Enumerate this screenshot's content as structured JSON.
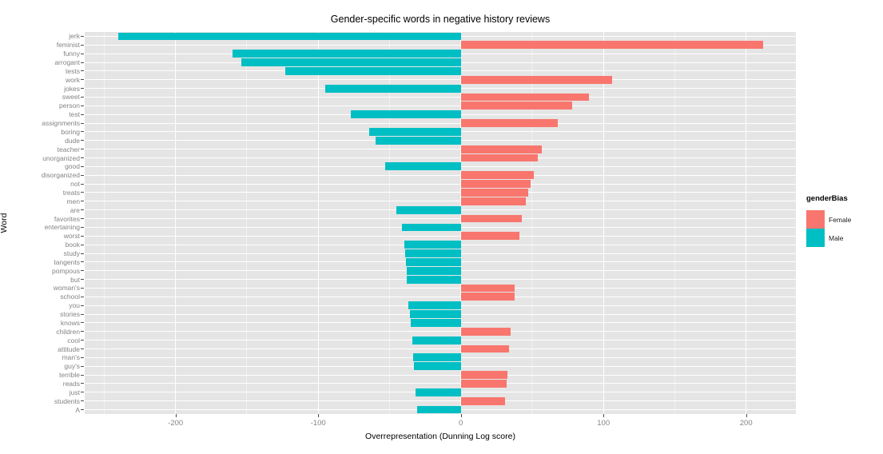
{
  "chart_data": {
    "type": "bar",
    "orientation": "horizontal",
    "title": "Gender-specific words in negative history reviews",
    "xlabel": "Overrepresentation (Dunning Log score)",
    "ylabel": "Word",
    "xlim": [
      -263.7,
      234.9
    ],
    "x_ticks": [
      -200,
      -100,
      0,
      100,
      200
    ],
    "x_minor_ticks": [
      -250,
      -150,
      -50,
      50,
      150
    ],
    "grid": true,
    "panel_color": "#e5e5e5",
    "legend": {
      "title": "genderBias",
      "position": "right",
      "entries": [
        {
          "label": "Female",
          "color": "#F8766D"
        },
        {
          "label": "Male",
          "color": "#00BFC4"
        }
      ]
    },
    "bars": [
      {
        "word": "jerk",
        "value": -240,
        "genderBias": "Male"
      },
      {
        "word": "feminist",
        "value": 212,
        "genderBias": "Female"
      },
      {
        "word": "funny",
        "value": -160,
        "genderBias": "Male"
      },
      {
        "word": "arrogant",
        "value": -154,
        "genderBias": "Male"
      },
      {
        "word": "tests",
        "value": -123,
        "genderBias": "Male"
      },
      {
        "word": "work",
        "value": 106,
        "genderBias": "Female"
      },
      {
        "word": "jokes",
        "value": -95,
        "genderBias": "Male"
      },
      {
        "word": "sweet",
        "value": 90,
        "genderBias": "Female"
      },
      {
        "word": "person",
        "value": 78,
        "genderBias": "Female"
      },
      {
        "word": "test",
        "value": -77,
        "genderBias": "Male"
      },
      {
        "word": "assignments",
        "value": 68,
        "genderBias": "Female"
      },
      {
        "word": "boring",
        "value": -64,
        "genderBias": "Male"
      },
      {
        "word": "dude",
        "value": -60,
        "genderBias": "Male"
      },
      {
        "word": "teacher",
        "value": 57,
        "genderBias": "Female"
      },
      {
        "word": "unorganized",
        "value": 54,
        "genderBias": "Female"
      },
      {
        "word": "good",
        "value": -53,
        "genderBias": "Male"
      },
      {
        "word": "disorganized",
        "value": 51,
        "genderBias": "Female"
      },
      {
        "word": "not",
        "value": 49,
        "genderBias": "Female"
      },
      {
        "word": "treats",
        "value": 47,
        "genderBias": "Female"
      },
      {
        "word": "men",
        "value": 45.5,
        "genderBias": "Female"
      },
      {
        "word": "are",
        "value": -45,
        "genderBias": "Male"
      },
      {
        "word": "favorites",
        "value": 43,
        "genderBias": "Female"
      },
      {
        "word": "entertaining",
        "value": -41.5,
        "genderBias": "Male"
      },
      {
        "word": "worst",
        "value": 41,
        "genderBias": "Female"
      },
      {
        "word": "book",
        "value": -39.5,
        "genderBias": "Male"
      },
      {
        "word": "study",
        "value": -39,
        "genderBias": "Male"
      },
      {
        "word": "tangents",
        "value": -38.5,
        "genderBias": "Male"
      },
      {
        "word": "pompous",
        "value": -38,
        "genderBias": "Male"
      },
      {
        "word": "but",
        "value": -38,
        "genderBias": "Male"
      },
      {
        "word": "woman's",
        "value": 37.8,
        "genderBias": "Female"
      },
      {
        "word": "school",
        "value": 37.5,
        "genderBias": "Female"
      },
      {
        "word": "you",
        "value": -37,
        "genderBias": "Male"
      },
      {
        "word": "stories",
        "value": -35.5,
        "genderBias": "Male"
      },
      {
        "word": "knows",
        "value": -35.3,
        "genderBias": "Male"
      },
      {
        "word": "children",
        "value": 35,
        "genderBias": "Female"
      },
      {
        "word": "cool",
        "value": -34,
        "genderBias": "Male"
      },
      {
        "word": "attitude",
        "value": 33.8,
        "genderBias": "Female"
      },
      {
        "word": "man's",
        "value": -33.5,
        "genderBias": "Male"
      },
      {
        "word": "guy's",
        "value": -33,
        "genderBias": "Male"
      },
      {
        "word": "terrible",
        "value": 32.8,
        "genderBias": "Female"
      },
      {
        "word": "reads",
        "value": 32,
        "genderBias": "Female"
      },
      {
        "word": "just",
        "value": -31.5,
        "genderBias": "Male"
      },
      {
        "word": "students",
        "value": 31,
        "genderBias": "Female"
      },
      {
        "word": "A",
        "value": -30.5,
        "genderBias": "Male"
      }
    ]
  }
}
